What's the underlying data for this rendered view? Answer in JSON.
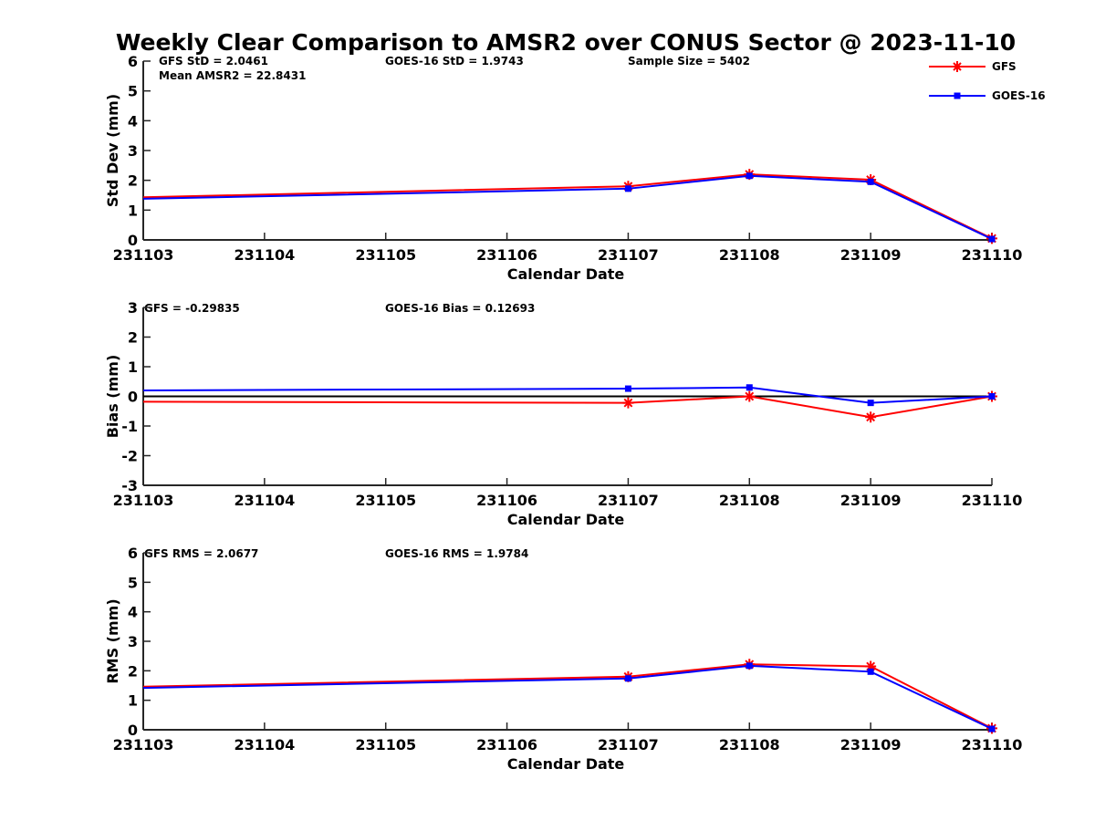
{
  "title": "Weekly Clear Comparison to AMSR2 over CONUS Sector @ 2023-11-10",
  "colors": {
    "gfs": "#ff0000",
    "goes": "#0000ff",
    "axis": "#262626",
    "zero_line": "#000000"
  },
  "legend": {
    "placement": "top-right",
    "entries": [
      {
        "label": "GFS",
        "marker": "asterisk",
        "color": "#ff0000"
      },
      {
        "label": "GOES-16",
        "marker": "square",
        "color": "#0000ff"
      }
    ]
  },
  "panels": [
    {
      "annotations": [
        "GFS StD = 2.0461",
        "GOES-16 StD = 1.9743",
        "Sample Size = 5402",
        "Mean AMSR2 = 22.8431"
      ]
    },
    {
      "annotations": [
        "GFS = -0.29835",
        "GOES-16 Bias  = 0.12693"
      ]
    },
    {
      "annotations": [
        "GFS RMS = 2.0677",
        "GOES-16 RMS = 1.9784"
      ]
    }
  ],
  "chart_data": [
    {
      "type": "line",
      "xlabel": "Calendar Date",
      "ylabel": "Std Dev (mm)",
      "x_ticks": [
        "231103",
        "231104",
        "231105",
        "231106",
        "231107",
        "231108",
        "231109",
        "231110"
      ],
      "y_ticks": [
        "0",
        "1",
        "2",
        "3",
        "4",
        "5",
        "6"
      ],
      "ylim": [
        0,
        6
      ],
      "zero_line": false,
      "series": [
        {
          "name": "GFS",
          "color": "#ff0000",
          "marker": "asterisk",
          "x": [
            "231103",
            "231107",
            "231108",
            "231109",
            "231110"
          ],
          "y": [
            1.43,
            1.8,
            2.2,
            2.02,
            0.05
          ]
        },
        {
          "name": "GOES-16",
          "color": "#0000ff",
          "marker": "square",
          "x": [
            "231103",
            "231107",
            "231108",
            "231109",
            "231110"
          ],
          "y": [
            1.38,
            1.72,
            2.15,
            1.95,
            0.03
          ]
        }
      ]
    },
    {
      "type": "line",
      "xlabel": "Calendar Date",
      "ylabel": "Bias (mm)",
      "x_ticks": [
        "231103",
        "231104",
        "231105",
        "231106",
        "231107",
        "231108",
        "231109",
        "231110"
      ],
      "y_ticks": [
        "-3",
        "-2",
        "-1",
        "0",
        "1",
        "2",
        "3"
      ],
      "ylim": [
        -3,
        3
      ],
      "zero_line": true,
      "series": [
        {
          "name": "GFS",
          "color": "#ff0000",
          "marker": "asterisk",
          "x": [
            "231103",
            "231107",
            "231108",
            "231109",
            "231110"
          ],
          "y": [
            -0.18,
            -0.22,
            0.0,
            -0.7,
            0.0
          ]
        },
        {
          "name": "GOES-16",
          "color": "#0000ff",
          "marker": "square",
          "x": [
            "231103",
            "231107",
            "231108",
            "231109",
            "231110"
          ],
          "y": [
            0.2,
            0.26,
            0.3,
            -0.22,
            0.0
          ]
        }
      ]
    },
    {
      "type": "line",
      "xlabel": "Calendar Date",
      "ylabel": "RMS (mm)",
      "x_ticks": [
        "231103",
        "231104",
        "231105",
        "231106",
        "231107",
        "231108",
        "231109",
        "231110"
      ],
      "y_ticks": [
        "0",
        "1",
        "2",
        "3",
        "4",
        "5",
        "6"
      ],
      "ylim": [
        0,
        6
      ],
      "zero_line": false,
      "series": [
        {
          "name": "GFS",
          "color": "#ff0000",
          "marker": "asterisk",
          "x": [
            "231103",
            "231107",
            "231108",
            "231109",
            "231110"
          ],
          "y": [
            1.46,
            1.8,
            2.22,
            2.15,
            0.05
          ]
        },
        {
          "name": "GOES-16",
          "color": "#0000ff",
          "marker": "square",
          "x": [
            "231103",
            "231107",
            "231108",
            "231109",
            "231110"
          ],
          "y": [
            1.42,
            1.74,
            2.17,
            1.97,
            0.03
          ]
        }
      ]
    }
  ]
}
